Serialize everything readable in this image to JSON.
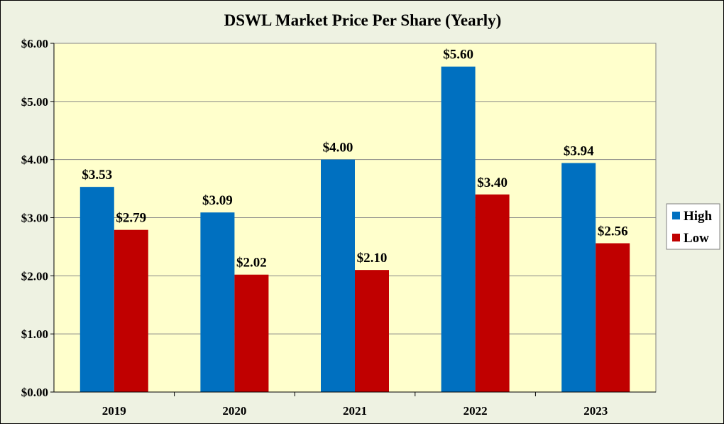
{
  "chart_data": {
    "type": "bar",
    "title": "DSWL Market Price Per Share (Yearly)",
    "categories": [
      "2019",
      "2020",
      "2021",
      "2022",
      "2023"
    ],
    "series": [
      {
        "name": "High",
        "color": "#0070c0",
        "values": [
          3.53,
          3.09,
          4.0,
          5.6,
          3.94
        ],
        "labels": [
          "$3.53",
          "$3.09",
          "$4.00",
          "$5.60",
          "$3.94"
        ]
      },
      {
        "name": "Low",
        "color": "#c00000",
        "values": [
          2.79,
          2.02,
          2.1,
          3.4,
          2.56
        ],
        "labels": [
          "$2.79",
          "$2.02",
          "$2.10",
          "$3.40",
          "$2.56"
        ]
      }
    ],
    "ylim": [
      0,
      6
    ],
    "yticks": [
      0,
      1,
      2,
      3,
      4,
      5,
      6
    ],
    "ytick_labels": [
      "$0.00",
      "$1.00",
      "$2.00",
      "$3.00",
      "$4.00",
      "$5.00",
      "$6.00"
    ],
    "xlabel": "",
    "ylabel": "",
    "grid": true,
    "legend": "right",
    "plot_background": "#ffffcc",
    "chart_background": "#eef2e2"
  }
}
